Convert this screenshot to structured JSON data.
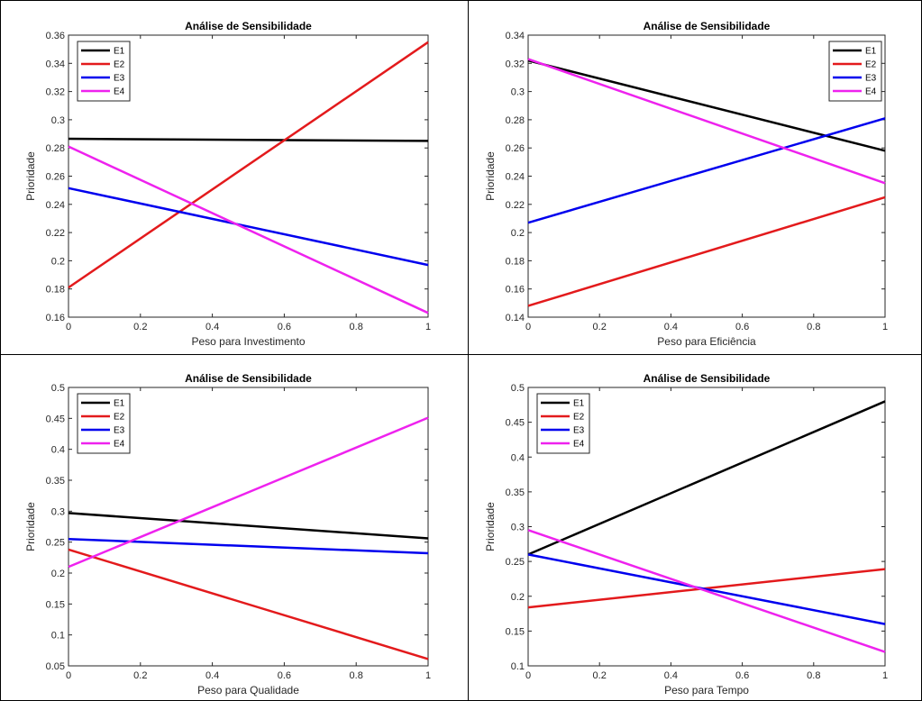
{
  "chart_data": [
    {
      "type": "line",
      "title": "Análise de Sensibilidade",
      "xlabel": "Peso para Investimento",
      "ylabel": "Prioridade",
      "xlim": [
        0,
        1
      ],
      "ylim": [
        0.16,
        0.36
      ],
      "xticks": [
        0,
        0.2,
        0.4,
        0.6,
        0.8,
        1
      ],
      "xtick_labels": [
        "0",
        "0.2",
        "0.4",
        "0.6",
        "0.8",
        "1"
      ],
      "yticks": [
        0.16,
        0.18,
        0.2,
        0.22,
        0.24,
        0.26,
        0.28,
        0.3,
        0.32,
        0.34,
        0.36
      ],
      "ytick_labels": [
        "0.16",
        "0.18",
        "0.2",
        "0.22",
        "0.24",
        "0.26",
        "0.28",
        "0.3",
        "0.32",
        "0.34",
        "0.36"
      ],
      "legend": "top-left",
      "grid": false,
      "x": [
        0,
        1
      ],
      "series": [
        {
          "name": "E1",
          "color": "#000000",
          "values": [
            0.2865,
            0.285
          ]
        },
        {
          "name": "E2",
          "color": "#e31a1c",
          "values": [
            0.181,
            0.355
          ]
        },
        {
          "name": "E3",
          "color": "#0000ee",
          "values": [
            0.2515,
            0.197
          ]
        },
        {
          "name": "E4",
          "color": "#ee22ee",
          "values": [
            0.281,
            0.163
          ]
        }
      ]
    },
    {
      "type": "line",
      "title": "Análise de Sensibilidade",
      "xlabel": "Peso para Eficiência",
      "ylabel": "Prioridade",
      "xlim": [
        0,
        1
      ],
      "ylim": [
        0.14,
        0.34
      ],
      "xticks": [
        0,
        0.2,
        0.4,
        0.6,
        0.8,
        1
      ],
      "xtick_labels": [
        "0",
        "0.2",
        "0.4",
        "0.6",
        "0.8",
        "1"
      ],
      "yticks": [
        0.14,
        0.16,
        0.18,
        0.2,
        0.22,
        0.24,
        0.26,
        0.28,
        0.3,
        0.32,
        0.34
      ],
      "ytick_labels": [
        "0.14",
        "0.16",
        "0.18",
        "0.2",
        "0.22",
        "0.24",
        "0.26",
        "0.28",
        "0.3",
        "0.32",
        "0.34"
      ],
      "legend": "top-right",
      "grid": false,
      "x": [
        0,
        1
      ],
      "series": [
        {
          "name": "E1",
          "color": "#000000",
          "values": [
            0.322,
            0.258
          ]
        },
        {
          "name": "E2",
          "color": "#e31a1c",
          "values": [
            0.148,
            0.225
          ]
        },
        {
          "name": "E3",
          "color": "#0000ee",
          "values": [
            0.207,
            0.281
          ]
        },
        {
          "name": "E4",
          "color": "#ee22ee",
          "values": [
            0.323,
            0.235
          ]
        }
      ]
    },
    {
      "type": "line",
      "title": "Análise de Sensibilidade",
      "xlabel": "Peso para Qualidade",
      "ylabel": "Prioridade",
      "xlim": [
        0,
        1
      ],
      "ylim": [
        0.05,
        0.5
      ],
      "xticks": [
        0,
        0.2,
        0.4,
        0.6,
        0.8,
        1
      ],
      "xtick_labels": [
        "0",
        "0.2",
        "0.4",
        "0.6",
        "0.8",
        "1"
      ],
      "yticks": [
        0.05,
        0.1,
        0.15,
        0.2,
        0.25,
        0.3,
        0.35,
        0.4,
        0.45,
        0.5
      ],
      "ytick_labels": [
        "0.05",
        "0.1",
        "0.15",
        "0.2",
        "0.25",
        "0.3",
        "0.35",
        "0.4",
        "0.45",
        "0.5"
      ],
      "legend": "top-left",
      "grid": false,
      "x": [
        0,
        1
      ],
      "series": [
        {
          "name": "E1",
          "color": "#000000",
          "values": [
            0.297,
            0.256
          ]
        },
        {
          "name": "E2",
          "color": "#e31a1c",
          "values": [
            0.238,
            0.061
          ]
        },
        {
          "name": "E3",
          "color": "#0000ee",
          "values": [
            0.255,
            0.232
          ]
        },
        {
          "name": "E4",
          "color": "#ee22ee",
          "values": [
            0.21,
            0.451
          ]
        }
      ]
    },
    {
      "type": "line",
      "title": "Análise de Sensibilidade",
      "xlabel": "Peso para Tempo",
      "ylabel": "Prioridade",
      "xlim": [
        0,
        1
      ],
      "ylim": [
        0.1,
        0.5
      ],
      "xticks": [
        0,
        0.2,
        0.4,
        0.6,
        0.8,
        1
      ],
      "xtick_labels": [
        "0",
        "0.2",
        "0.4",
        "0.6",
        "0.8",
        "1"
      ],
      "yticks": [
        0.1,
        0.15,
        0.2,
        0.25,
        0.3,
        0.35,
        0.4,
        0.45,
        0.5
      ],
      "ytick_labels": [
        "0.1",
        "0.15",
        "0.2",
        "0.25",
        "0.3",
        "0.35",
        "0.4",
        "0.45",
        "0.5"
      ],
      "legend": "top-left",
      "grid": false,
      "x": [
        0,
        1
      ],
      "series": [
        {
          "name": "E1",
          "color": "#000000",
          "values": [
            0.26,
            0.48
          ]
        },
        {
          "name": "E2",
          "color": "#e31a1c",
          "values": [
            0.184,
            0.239
          ]
        },
        {
          "name": "E3",
          "color": "#0000ee",
          "values": [
            0.26,
            0.16
          ]
        },
        {
          "name": "E4",
          "color": "#ee22ee",
          "values": [
            0.295,
            0.12
          ]
        }
      ]
    }
  ]
}
